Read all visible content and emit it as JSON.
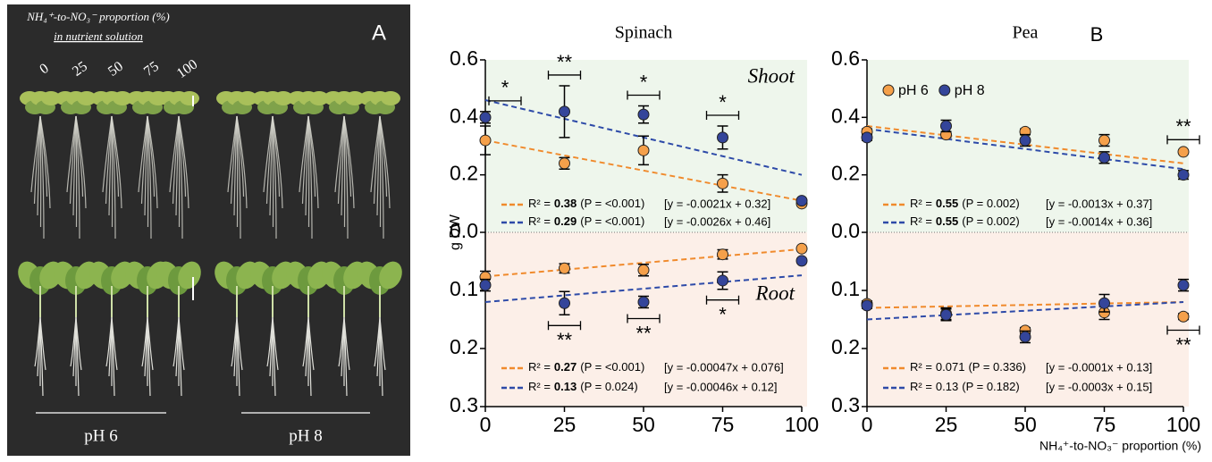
{
  "panel_a": {
    "label": "A",
    "title": "NH₄⁺-to-NO₃⁻ proportion (%)",
    "subtitle": "in nutrient solution",
    "proportions": [
      "0",
      "25",
      "50",
      "75",
      "100"
    ],
    "groups": [
      "pH 6",
      "pH 8"
    ]
  },
  "panel_label": "B",
  "chart_data": [
    {
      "type": "scatter",
      "title": "Spinach",
      "ylabel": "g DW",
      "x": [
        0,
        25,
        50,
        75,
        100
      ],
      "xlim": [
        0,
        100
      ],
      "xticks": [
        0,
        25,
        50,
        75,
        100
      ],
      "ylim": [
        0,
        0.6
      ],
      "yticks": [
        {
          "value": 0,
          "label": "0.0"
        },
        0.2,
        0.4,
        0.6
      ],
      "y2lim": [
        0,
        0.3
      ],
      "y2ticks": [
        0.1,
        0.2,
        0.3
      ],
      "shoot_label": "Shoot",
      "root_label": "Root",
      "series": [
        {
          "name": "pH 6",
          "color": "#f5a04a",
          "line_color": "#f08a2c",
          "values": [
            0.32,
            0.24,
            0.285,
            0.17,
            0.1
          ],
          "errors": [
            0.05,
            0.02,
            0.05,
            0.03,
            0
          ],
          "root_values": [
            0.077,
            0.062,
            0.065,
            0.038,
            0.028
          ],
          "root_errors": [
            0.01,
            0.008,
            0.01,
            0.008,
            0
          ],
          "shoot_fit": {
            "r2_label": "R² =",
            "r2": 0.38,
            "r2_bold": true,
            "p": "(P = <0.001)",
            "equation": "[y = -0.0021x + 0.32]",
            "slope": -0.0021,
            "intercept": 0.32
          },
          "root_fit": {
            "r2_label": "R² =",
            "r2": 0.27,
            "r2_bold": true,
            "p": "(P = <0.001)",
            "equation": "[y = -0.00047x + 0.076]",
            "slope": -0.00047,
            "intercept": 0.076
          }
        },
        {
          "name": "pH 8",
          "color": "#34459a",
          "line_color": "#2d4aa8",
          "values": [
            0.4,
            0.42,
            0.41,
            0.33,
            0.11
          ],
          "errors": [
            0.02,
            0.09,
            0.03,
            0.04,
            0
          ],
          "root_values": [
            0.091,
            0.122,
            0.12,
            0.083,
            0.049
          ],
          "root_errors": [
            0.01,
            0.02,
            0.01,
            0.015,
            0
          ],
          "shoot_fit": {
            "r2_label": "R² =",
            "r2": 0.29,
            "r2_bold": true,
            "p": "(P = <0.001)",
            "equation": "[y = -0.0026x + 0.46]",
            "slope": -0.0026,
            "intercept": 0.46
          },
          "root_fit": {
            "r2_label": "R² =",
            "r2": 0.13,
            "r2_bold": true,
            "p": "(P = 0.024)",
            "equation": "[y = -0.00046x + 0.12]",
            "slope": -0.00046,
            "intercept": 0.12
          }
        }
      ],
      "significance": {
        "shoot": [
          "*",
          "**",
          "*",
          "*",
          null
        ],
        "root": [
          null,
          "**",
          "**",
          "*",
          null
        ]
      }
    },
    {
      "type": "scatter",
      "title": "Pea",
      "xlabel": "NH₄⁺-to-NO₃⁻ proportion (%)",
      "legend": "upper left",
      "x": [
        0,
        25,
        50,
        75,
        100
      ],
      "xlim": [
        0,
        100
      ],
      "xticks": [
        0,
        25,
        50,
        75,
        100
      ],
      "ylim": [
        0,
        0.6
      ],
      "yticks": [
        {
          "value": 0,
          "label": "0.0"
        },
        0.2,
        0.4,
        0.6
      ],
      "y2lim": [
        0,
        0.3
      ],
      "y2ticks": [
        0.1,
        0.2,
        0.3
      ],
      "series": [
        {
          "name": "pH 6",
          "color": "#f5a04a",
          "line_color": "#f08a2c",
          "values": [
            0.35,
            0.34,
            0.35,
            0.32,
            0.28
          ],
          "errors": [
            0.01,
            0.01,
            0.01,
            0.02,
            0.005
          ],
          "root_values": [
            0.123,
            0.14,
            0.169,
            0.138,
            0.145
          ],
          "root_errors": [
            0.005,
            0.01,
            0.005,
            0.012,
            0.005
          ],
          "shoot_fit": {
            "r2_label": "R² =",
            "r2": 0.55,
            "r2_bold": true,
            "p": "(P = 0.002)",
            "equation": "[y = -0.0013x + 0.37]",
            "slope": -0.0013,
            "intercept": 0.37
          },
          "root_fit": {
            "r2_label": "R² =",
            "r2": 0.071,
            "r2_bold": false,
            "p": "(P = 0.336)",
            "equation": "[y = -0.0001x + 0.13]",
            "slope": -0.0001,
            "intercept": 0.13
          }
        },
        {
          "name": "pH 8",
          "color": "#34459a",
          "line_color": "#2d4aa8",
          "values": [
            0.33,
            0.37,
            0.32,
            0.26,
            0.2
          ],
          "errors": [
            0.01,
            0.02,
            0.02,
            0.02,
            0.015
          ],
          "root_values": [
            0.126,
            0.142,
            0.18,
            0.122,
            0.091
          ],
          "root_errors": [
            0.005,
            0.01,
            0.01,
            0.015,
            0.01
          ],
          "shoot_fit": {
            "r2_label": "R² =",
            "r2": 0.55,
            "r2_bold": true,
            "p": "(P = 0.002)",
            "equation": "[y = -0.0014x + 0.36]",
            "slope": -0.0014,
            "intercept": 0.36
          },
          "root_fit": {
            "r2_label": "R² =",
            "r2": 0.13,
            "r2_bold": false,
            "p": "(P = 0.182)",
            "equation": "[y = -0.0003x + 0.15]",
            "slope": -0.0003,
            "intercept": 0.15
          }
        }
      ],
      "significance": {
        "shoot": [
          null,
          null,
          null,
          null,
          "**"
        ],
        "root": [
          null,
          null,
          null,
          null,
          "**"
        ]
      }
    }
  ]
}
